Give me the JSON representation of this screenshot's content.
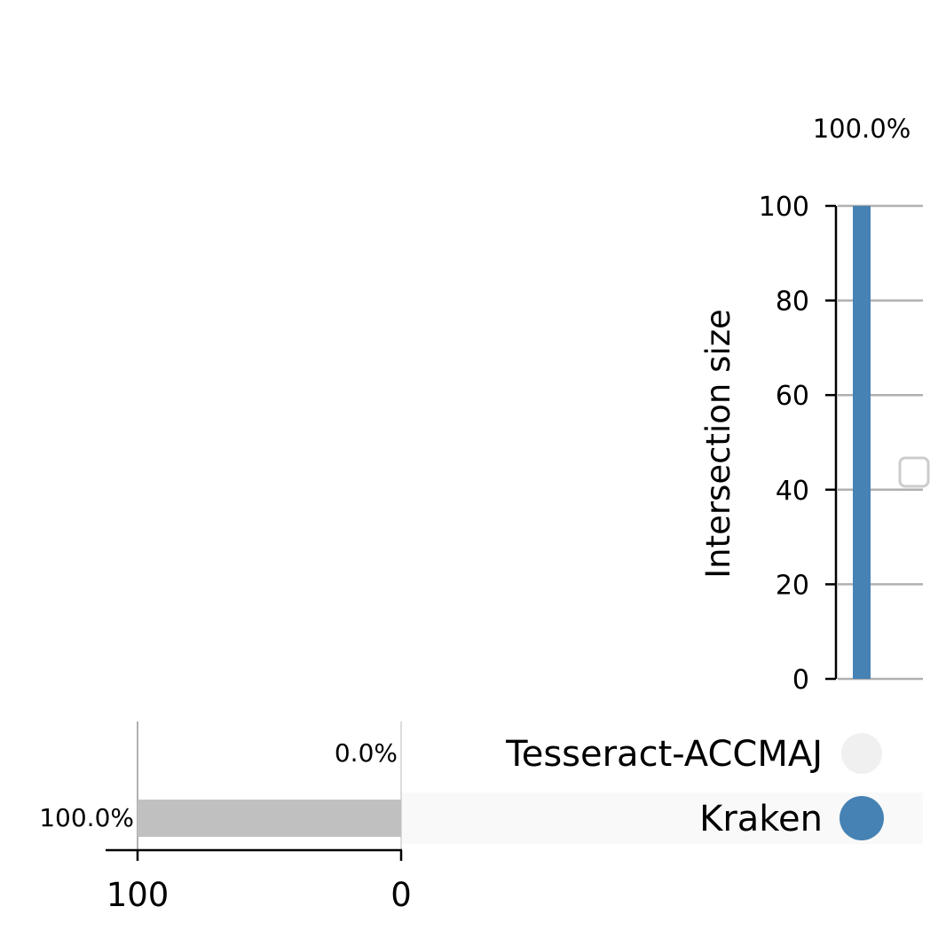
{
  "chart_data": {
    "type": "upset",
    "sets": [
      "Tesseract-ACCMAJ",
      "Kraken"
    ],
    "set_sizes": [
      {
        "name": "Tesseract-ACCMAJ",
        "value": 0,
        "label": "0.0%"
      },
      {
        "name": "Kraken",
        "value": 100,
        "label": "100.0%"
      }
    ],
    "set_size_ticks": [
      "100",
      "0"
    ],
    "intersections": [
      {
        "members": [
          "Kraken"
        ],
        "value": 100,
        "label": "100.0%"
      }
    ],
    "intersection_axis": {
      "label": "Intersection size",
      "ticks": [
        "0",
        "20",
        "40",
        "60",
        "80",
        "100"
      ],
      "ylim": [
        0,
        100
      ]
    },
    "grid": true,
    "colors": {
      "intersection_bar": "#4682b4",
      "active_dot": "#4682b4",
      "inactive_dot": "#f0f0f0",
      "set_bar": "#c0c0c0",
      "grid": "#b0b0b0",
      "row_shade": "#f9f9f9"
    }
  }
}
